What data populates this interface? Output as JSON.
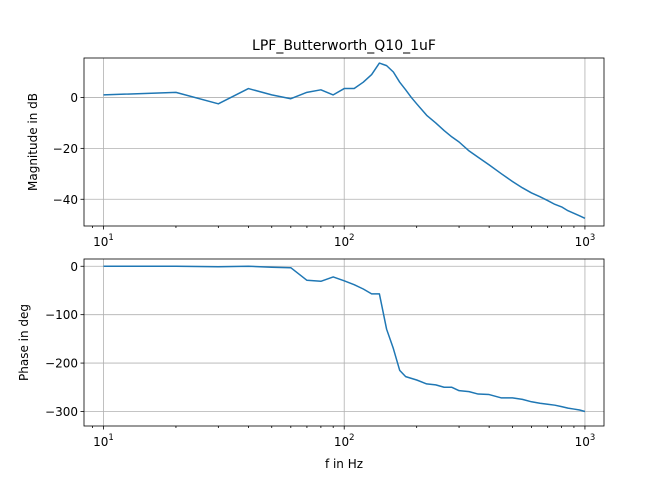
{
  "chart_data": [
    {
      "type": "line",
      "title": "LPF_Butterworth_Q10_1uF",
      "xlabel": "",
      "ylabel": "Magnitude in dB",
      "x_scale": "log",
      "xlim": [
        8.3,
        1200
      ],
      "ylim": [
        -50.5,
        15.5
      ],
      "grid": true,
      "xticks": [
        {
          "value": 10,
          "base": "10",
          "exp": "1"
        },
        {
          "value": 100,
          "base": "10",
          "exp": "2"
        },
        {
          "value": 1000,
          "base": "10",
          "exp": "3"
        }
      ],
      "yticks": [
        {
          "value": 0,
          "label": "0"
        },
        {
          "value": -20,
          "label": "−20"
        },
        {
          "value": -40,
          "label": "−40"
        }
      ],
      "series": [
        {
          "color": "#1f77b4",
          "x": [
            10,
            20,
            30,
            40,
            50,
            60,
            70,
            80,
            90,
            100,
            110,
            120,
            130,
            140,
            150,
            160,
            170,
            180,
            190,
            200,
            220,
            240,
            260,
            280,
            300,
            330,
            360,
            400,
            450,
            500,
            550,
            600,
            650,
            700,
            750,
            800,
            850,
            900,
            950,
            1000
          ],
          "y": [
            1,
            2,
            -2.5,
            3.5,
            1,
            -0.5,
            2,
            3,
            1,
            3.5,
            3.5,
            6,
            9,
            13.5,
            12.5,
            10,
            6,
            3,
            0,
            -2.5,
            -7,
            -10,
            -13,
            -15.5,
            -17.5,
            -21,
            -23.5,
            -26.5,
            -30,
            -33,
            -35.5,
            -37.5,
            -39,
            -40.5,
            -42,
            -43,
            -44.5,
            -45.5,
            -46.5,
            -47.5
          ]
        }
      ]
    },
    {
      "type": "line",
      "title": "",
      "xlabel": "f in Hz",
      "ylabel": "Phase in deg",
      "x_scale": "log",
      "xlim": [
        8.3,
        1200
      ],
      "ylim": [
        -330,
        15
      ],
      "grid": true,
      "xticks": [
        {
          "value": 10,
          "base": "10",
          "exp": "1"
        },
        {
          "value": 100,
          "base": "10",
          "exp": "2"
        },
        {
          "value": 1000,
          "base": "10",
          "exp": "3"
        }
      ],
      "yticks": [
        {
          "value": 0,
          "label": "0"
        },
        {
          "value": -100,
          "label": "−100"
        },
        {
          "value": -200,
          "label": "−200"
        },
        {
          "value": -300,
          "label": "−300"
        }
      ],
      "series": [
        {
          "color": "#1f77b4",
          "x": [
            10,
            20,
            30,
            40,
            50,
            60,
            70,
            80,
            90,
            100,
            110,
            120,
            130,
            140,
            150,
            160,
            170,
            180,
            200,
            220,
            240,
            260,
            280,
            300,
            330,
            360,
            400,
            450,
            500,
            550,
            600,
            650,
            700,
            750,
            800,
            850,
            900,
            950,
            1000
          ],
          "y": [
            0,
            0,
            -1,
            0,
            -2,
            -3,
            -29,
            -31,
            -22,
            -30,
            -38,
            -47,
            -57,
            -57,
            -130,
            -170,
            -215,
            -228,
            -235,
            -243,
            -245,
            -250,
            -250,
            -257,
            -259,
            -264,
            -265,
            -272,
            -272,
            -275,
            -280,
            -283,
            -285,
            -287,
            -290,
            -293,
            -295,
            -297,
            -300
          ]
        }
      ]
    }
  ]
}
